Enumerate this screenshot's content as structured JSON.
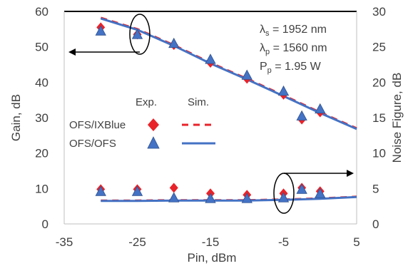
{
  "chart_data": {
    "type": "scatter",
    "xlabel": "Pin, dBm",
    "ylabel_left": "Gain, dB",
    "ylabel_right": "Noise Figure, dB",
    "xlim": [
      -35,
      5
    ],
    "ylim_left": [
      0,
      60
    ],
    "ylim_right": [
      0,
      30
    ],
    "x_ticks": [
      -35,
      -25,
      -15,
      -5,
      5
    ],
    "y_ticks_left": [
      0,
      10,
      20,
      30,
      40,
      50,
      60
    ],
    "y_ticks_right": [
      0,
      5,
      10,
      15,
      20,
      25,
      30
    ],
    "grid": false,
    "legend": {
      "header_exp": "Exp.",
      "header_sim": "Sim.",
      "entries": [
        {
          "label": "OFS/IXBlue",
          "marker": "diamond",
          "color": "#e8232a",
          "line_style": "dashed"
        },
        {
          "label": "OFS/OFS",
          "marker": "triangle",
          "color": "#4472c4",
          "line_style": "solid"
        }
      ]
    },
    "annotation": {
      "lines": [
        {
          "sym": "λ",
          "sub": "s",
          "rest": " = 1952 nm"
        },
        {
          "sym": "λ",
          "sub": "p",
          "rest": " = 1560 nm"
        },
        {
          "sym": "P",
          "sub": "p",
          "rest": " = 1.95 W"
        }
      ]
    },
    "series": [
      {
        "name": "OFS/IXBlue",
        "kind": "gain_exp",
        "axis": "left",
        "marker": "diamond",
        "color": "#e8232a",
        "x": [
          -30,
          -25,
          -20,
          -15,
          -10,
          -5,
          0,
          -2.5
        ],
        "y": [
          55.5,
          53.5,
          50.5,
          45.5,
          41,
          36.5,
          31.5,
          29.5
        ]
      },
      {
        "name": "OFS/OFS",
        "kind": "gain_exp",
        "axis": "left",
        "marker": "triangle",
        "color": "#4472c4",
        "x": [
          -30,
          -25,
          -20,
          -15,
          -10,
          -5,
          0,
          -2.5
        ],
        "y": [
          54.5,
          53.5,
          51,
          46.5,
          42,
          37.5,
          32.5,
          30.5
        ]
      },
      {
        "name": "OFS/IXBlue",
        "kind": "nf_exp",
        "axis": "right",
        "marker": "diamond",
        "color": "#e8232a",
        "x": [
          -30,
          -25,
          -20,
          -15,
          -10,
          -5,
          0,
          -2.5
        ],
        "y": [
          4.9,
          4.9,
          5.1,
          4.3,
          4.1,
          4.3,
          4.6,
          5.1
        ]
      },
      {
        "name": "OFS/OFS",
        "kind": "nf_exp",
        "axis": "right",
        "marker": "triangle",
        "color": "#4472c4",
        "x": [
          -30,
          -25,
          -20,
          -15,
          -10,
          -5,
          0,
          -2.5
        ],
        "y": [
          4.6,
          4.6,
          3.7,
          3.6,
          3.6,
          3.7,
          4.3,
          4.9
        ]
      },
      {
        "name": "OFS/IXBlue",
        "kind": "gain_sim",
        "axis": "left",
        "line": "dashed",
        "color": "#e8232a",
        "x": [
          -30,
          -25,
          -20,
          -15,
          -10,
          -5,
          0,
          5
        ],
        "y": [
          58.2,
          55,
          50.5,
          45.5,
          41,
          36.3,
          31.5,
          27
        ]
      },
      {
        "name": "OFS/OFS",
        "kind": "gain_sim",
        "axis": "left",
        "line": "solid",
        "color": "#4472c4",
        "x": [
          -30,
          -25,
          -20,
          -15,
          -10,
          -5,
          0,
          5
        ],
        "y": [
          58,
          54.8,
          50.3,
          45.3,
          40.8,
          36.1,
          31.3,
          26.8
        ]
      },
      {
        "name": "OFS/IXBlue",
        "kind": "nf_sim",
        "axis": "right",
        "line": "dashed",
        "color": "#e8232a",
        "x": [
          -30,
          -25,
          -20,
          -15,
          -10,
          -5,
          0,
          5
        ],
        "y": [
          3.3,
          3.3,
          3.35,
          3.35,
          3.35,
          3.45,
          3.6,
          3.85
        ]
      },
      {
        "name": "OFS/OFS",
        "kind": "nf_sim",
        "axis": "right",
        "line": "solid",
        "color": "#4472c4",
        "x": [
          -30,
          -25,
          -20,
          -15,
          -10,
          -5,
          0,
          5
        ],
        "y": [
          3.25,
          3.25,
          3.3,
          3.3,
          3.3,
          3.4,
          3.55,
          3.8
        ]
      }
    ]
  }
}
